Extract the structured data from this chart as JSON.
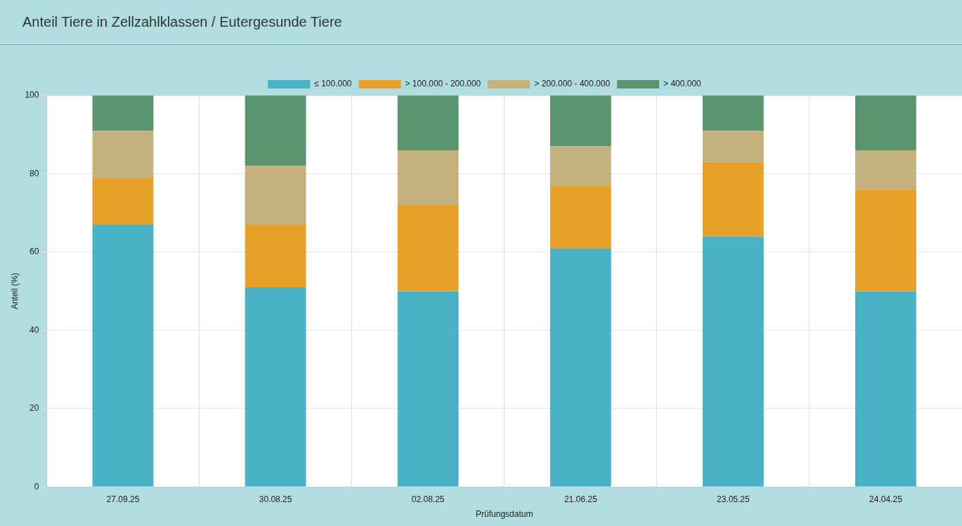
{
  "chart_data": {
    "type": "bar",
    "title": "Anteil Tiere in Zellzahlklassen / Eutergesunde Tiere",
    "xlabel": "Prüfungsdatum",
    "ylabel": "Anteil (%)",
    "categories": [
      "27.09.25",
      "30.08.25",
      "02.08.25",
      "21.06.25",
      "23.05.25",
      "24.04.25"
    ],
    "series": [
      {
        "name": "≤ 100.000",
        "color": "#4bb1c4",
        "values": [
          67,
          51,
          50,
          61,
          64,
          50
        ]
      },
      {
        "name": "> 100.000 - 200.000",
        "color": "#e8a22a",
        "values": [
          12,
          16,
          22,
          16,
          19,
          26
        ]
      },
      {
        "name": "> 200.000 - 400.000",
        "color": "#c4b27e",
        "values": [
          12,
          15,
          14,
          10,
          8,
          10
        ]
      },
      {
        "name": "> 400.000",
        "color": "#5a9570",
        "values": [
          9,
          18,
          14,
          13,
          9,
          14
        ]
      }
    ],
    "stacked": true,
    "ylim": [
      0,
      100
    ],
    "yticks": [
      0,
      20,
      40,
      60,
      80,
      100
    ],
    "grid": true,
    "legend": "top"
  }
}
